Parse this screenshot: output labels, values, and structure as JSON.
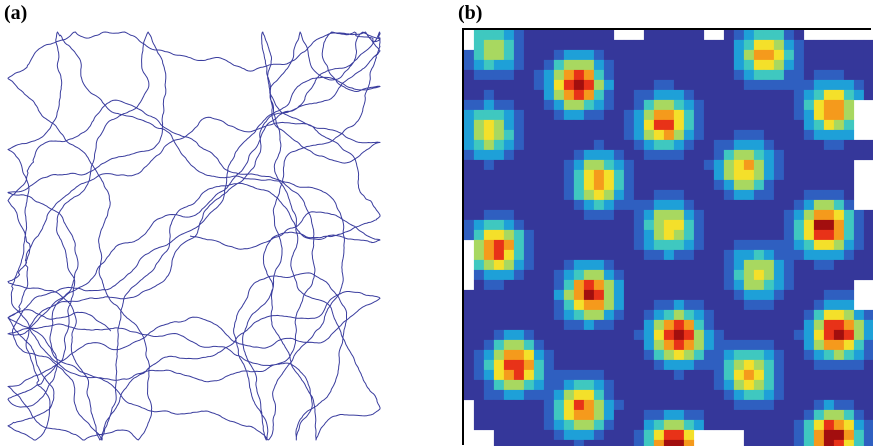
{
  "panels": [
    {
      "id": "a",
      "label": "(a)"
    },
    {
      "id": "b",
      "label": "(b)"
    }
  ],
  "colors": {
    "trajectory": "#3a3d9e",
    "ratemap_background": "#35379a",
    "colormap": [
      "#35379a",
      "#2f5fc0",
      "#1ea0d8",
      "#3fc8c0",
      "#a8d860",
      "#f4e02a",
      "#f59a1c",
      "#e83218",
      "#a20e0e"
    ]
  },
  "grid_fields": [
    {
      "col": 0.07,
      "row": 0.04,
      "peak": 0.55
    },
    {
      "col": 0.72,
      "row": 0.06,
      "peak": 0.75
    },
    {
      "col": 0.27,
      "row": 0.13,
      "peak": 0.95
    },
    {
      "col": 0.48,
      "row": 0.22,
      "peak": 0.85
    },
    {
      "col": 0.88,
      "row": 0.19,
      "peak": 0.8
    },
    {
      "col": 0.06,
      "row": 0.24,
      "peak": 0.6
    },
    {
      "col": 0.32,
      "row": 0.36,
      "peak": 0.75
    },
    {
      "col": 0.67,
      "row": 0.33,
      "peak": 0.7
    },
    {
      "col": 0.49,
      "row": 0.47,
      "peak": 0.65
    },
    {
      "col": 0.86,
      "row": 0.47,
      "peak": 0.95
    },
    {
      "col": 0.08,
      "row": 0.52,
      "peak": 0.85
    },
    {
      "col": 0.7,
      "row": 0.58,
      "peak": 0.6
    },
    {
      "col": 0.3,
      "row": 0.63,
      "peak": 0.9
    },
    {
      "col": 0.51,
      "row": 0.73,
      "peak": 0.95
    },
    {
      "col": 0.89,
      "row": 0.72,
      "peak": 0.95
    },
    {
      "col": 0.12,
      "row": 0.8,
      "peak": 0.9
    },
    {
      "col": 0.68,
      "row": 0.82,
      "peak": 0.7
    },
    {
      "col": 0.28,
      "row": 0.9,
      "peak": 0.8
    },
    {
      "col": 0.5,
      "row": 0.99,
      "peak": 1.0
    },
    {
      "col": 0.88,
      "row": 0.97,
      "peak": 1.0
    }
  ]
}
